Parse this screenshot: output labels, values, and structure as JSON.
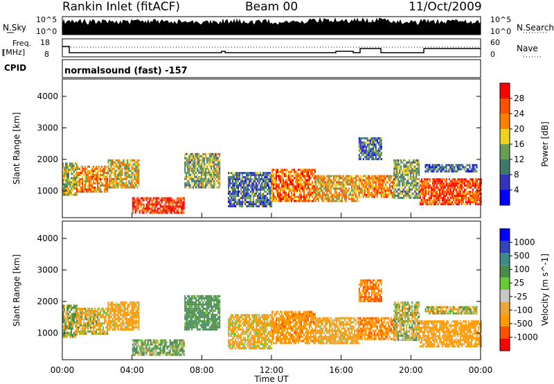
{
  "header": {
    "station": "Rankin Inlet (fitACF)",
    "beam": "Beam 00",
    "date": "11/Oct/2009"
  },
  "side_labels": {
    "nsky": "N.Sky",
    "freq_line1": "Freq.",
    "freq_line2": "[MHz]",
    "cpid": "CPID",
    "nsearch": "N.Search",
    "nave": "Nave",
    "nsky_ticks": [
      "10^5",
      "10^0"
    ],
    "nsearch_ticks": [
      "10^5",
      "10^0"
    ],
    "freq_ticks": [
      "18",
      "8"
    ],
    "nave_ticks": [
      "60",
      "0"
    ]
  },
  "cpid_text": "normalsound (fast) -157",
  "colors": {
    "power": [
      "#0000ff",
      "#3333bb",
      "#3d7a6a",
      "#6b9e55",
      "#f0d020",
      "#ff8000",
      "#ff5000",
      "#ff0000"
    ],
    "velocity": [
      "#ff0000",
      "#ff5000",
      "#ff9900",
      "#e9a73c",
      "#c8c8c8",
      "#66cc33",
      "#4a8c4a",
      "#3c8a8a",
      "#3344bb",
      "#0000ff"
    ]
  },
  "chart_data": [
    {
      "type": "heatmap",
      "title": "Power",
      "ylabel": "Slant Range [km]",
      "yticks": [
        "1000",
        "2000",
        "3000",
        "4000"
      ],
      "ylim": [
        150,
        4550
      ],
      "xticks": [
        "00:00",
        "04:00",
        "08:00",
        "12:00",
        "16:00",
        "20:00",
        "00:00"
      ],
      "xlim_hours": [
        0,
        24
      ],
      "colorbar_label": "Power [dB]",
      "colorbar_ticks": [
        "28",
        "24",
        "20",
        "16",
        "12",
        "8",
        "4"
      ],
      "colorbar_range": [
        0,
        32
      ],
      "echo_regions": [
        {
          "start_hour": 0.0,
          "end_hour": 0.8,
          "range_km": [
            900,
            1900
          ],
          "power_db": 16
        },
        {
          "start_hour": 0.8,
          "end_hour": 2.6,
          "range_km": [
            1000,
            1800
          ],
          "power_db": 22
        },
        {
          "start_hour": 2.6,
          "end_hour": 4.4,
          "range_km": [
            1100,
            2000
          ],
          "power_db": 18
        },
        {
          "start_hour": 4.0,
          "end_hour": 7.0,
          "range_km": [
            300,
            800
          ],
          "power_db": 28
        },
        {
          "start_hour": 7.0,
          "end_hour": 9.0,
          "range_km": [
            1100,
            2200
          ],
          "power_db": 14
        },
        {
          "start_hour": 9.5,
          "end_hour": 12.0,
          "range_km": [
            500,
            1600
          ],
          "power_db": 10
        },
        {
          "start_hour": 12.0,
          "end_hour": 14.5,
          "range_km": [
            700,
            1700
          ],
          "power_db": 24
        },
        {
          "start_hour": 14.5,
          "end_hour": 17.0,
          "range_km": [
            700,
            1500
          ],
          "power_db": 20
        },
        {
          "start_hour": 17.0,
          "end_hour": 19.0,
          "range_km": [
            800,
            1500
          ],
          "power_db": 22
        },
        {
          "start_hour": 17.0,
          "end_hour": 18.3,
          "range_km": [
            2000,
            2700
          ],
          "power_db": 10
        },
        {
          "start_hour": 19.0,
          "end_hour": 20.5,
          "range_km": [
            800,
            2000
          ],
          "power_db": 14
        },
        {
          "start_hour": 20.5,
          "end_hour": 24.0,
          "range_km": [
            600,
            1400
          ],
          "power_db": 26
        },
        {
          "start_hour": 20.8,
          "end_hour": 23.8,
          "range_km": [
            1600,
            1850
          ],
          "power_db": 8
        }
      ]
    },
    {
      "type": "heatmap",
      "title": "Velocity",
      "ylabel": "Slant Range [km]",
      "yticks": [
        "1000",
        "2000",
        "3000",
        "4000"
      ],
      "ylim": [
        150,
        4550
      ],
      "xticks": [
        "00:00",
        "04:00",
        "08:00",
        "12:00",
        "16:00",
        "20:00",
        "00:00"
      ],
      "xlim_hours": [
        0,
        24
      ],
      "xlabel": "Time UT",
      "colorbar_label": "Velocity [m s^-1]",
      "colorbar_ticks": [
        "1000",
        "500",
        "100",
        "25",
        "-25",
        "-100",
        "-500",
        "-1000"
      ],
      "echo_regions": [
        {
          "start_hour": 0.0,
          "end_hour": 0.8,
          "range_km": [
            900,
            1900
          ],
          "velocity": 100
        },
        {
          "start_hour": 0.8,
          "end_hour": 2.6,
          "range_km": [
            1000,
            1800
          ],
          "velocity": -100
        },
        {
          "start_hour": 2.6,
          "end_hour": 4.4,
          "range_km": [
            1100,
            2000
          ],
          "velocity": -200
        },
        {
          "start_hour": 4.0,
          "end_hour": 7.0,
          "range_km": [
            300,
            800
          ],
          "velocity": 150
        },
        {
          "start_hour": 7.0,
          "end_hour": 9.0,
          "range_km": [
            1100,
            2200
          ],
          "velocity": 300
        },
        {
          "start_hour": 9.5,
          "end_hour": 12.0,
          "range_km": [
            500,
            1600
          ],
          "velocity": -150
        },
        {
          "start_hour": 12.0,
          "end_hour": 14.5,
          "range_km": [
            700,
            1700
          ],
          "velocity": -300
        },
        {
          "start_hour": 14.5,
          "end_hour": 17.0,
          "range_km": [
            700,
            1500
          ],
          "velocity": -200
        },
        {
          "start_hour": 17.0,
          "end_hour": 19.0,
          "range_km": [
            800,
            1500
          ],
          "velocity": -400
        },
        {
          "start_hour": 17.0,
          "end_hour": 18.3,
          "range_km": [
            2000,
            2700
          ],
          "velocity": -500
        },
        {
          "start_hour": 19.0,
          "end_hour": 20.5,
          "range_km": [
            800,
            2000
          ],
          "velocity": 0
        },
        {
          "start_hour": 20.5,
          "end_hour": 24.0,
          "range_km": [
            600,
            1400
          ],
          "velocity": -250
        },
        {
          "start_hour": 20.8,
          "end_hour": 23.8,
          "range_km": [
            1600,
            1850
          ],
          "velocity": 0
        }
      ]
    }
  ]
}
